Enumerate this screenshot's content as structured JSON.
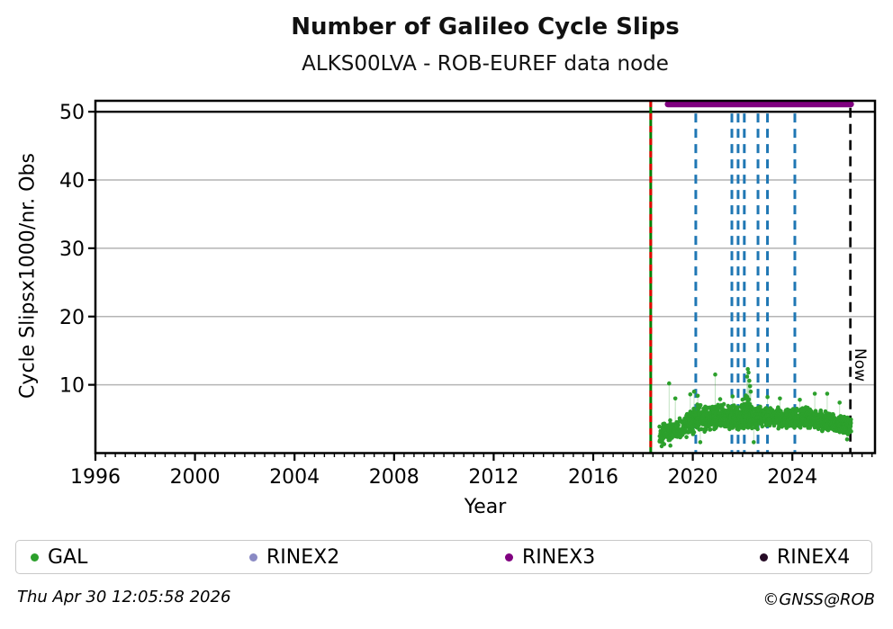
{
  "header": {
    "title": "Number of Galileo Cycle Slips",
    "subtitle": "ALKS00LVA - ROB-EUREF data node"
  },
  "footer": {
    "timestamp": "Thu Apr 30 12:05:58 2026",
    "copyright": "©GNSS@ROB"
  },
  "legend": {
    "items": [
      {
        "label": "GAL",
        "color": "#2ca02c"
      },
      {
        "label": "RINEX2",
        "color": "#8a8ac4"
      },
      {
        "label": "RINEX3",
        "color": "#800080"
      },
      {
        "label": "RINEX4",
        "color": "#260b26"
      }
    ]
  },
  "chart_data": {
    "type": "scatter",
    "title": "Number of Galileo Cycle Slips",
    "subtitle": "ALKS00LVA - ROB-EUREF data node",
    "xlabel": "Year",
    "ylabel": "Cycle Slipsx1000/nr. Obs",
    "xlim": [
      1996,
      2027.32
    ],
    "ylim": [
      0,
      51.6
    ],
    "x_major_ticks": [
      1996,
      2000,
      2004,
      2008,
      2012,
      2016,
      2020,
      2024
    ],
    "x_minor_tick_step": 0.4,
    "y_ticks": [
      10,
      20,
      30,
      40,
      50
    ],
    "grid": {
      "y_values": [
        10,
        20,
        30,
        40
      ],
      "color": "#b4b4b4",
      "y50_line": {
        "value": 50,
        "color": "#000000",
        "width": 2.4
      }
    },
    "now_marker": {
      "x": 2026.33,
      "label": "Now",
      "color": "#000000",
      "style": "dashed"
    },
    "station_start_line": {
      "x": 2018.31,
      "style": "dashed",
      "colors": [
        "#008000",
        "#e10600"
      ]
    },
    "event_lines": {
      "color": "#1f77b4",
      "style": "dashed",
      "x": [
        2020.12,
        2021.57,
        2021.82,
        2022.07,
        2022.62,
        2023.0,
        2024.1
      ]
    },
    "rinex3_availability": {
      "name": "RINEX3",
      "color": "#800080",
      "y": 51.1,
      "x_start": 2019.0,
      "x_end": 2026.35
    },
    "rinex2_availability": {
      "name": "RINEX2",
      "color": "#8a8ac4",
      "points": []
    },
    "rinex4_availability": {
      "name": "RINEX4",
      "color": "#260b26",
      "points": []
    },
    "gal_series": {
      "name": "GAL",
      "color": "#2ca02c",
      "marker_radius": 2.3,
      "x_start": 2018.66,
      "x_end": 2026.36,
      "sample_step_years": 0.004,
      "band_keyframes": [
        [
          2018.66,
          2.6,
          1.4
        ],
        [
          2019.0,
          3.0,
          1.5
        ],
        [
          2019.55,
          3.6,
          1.5
        ],
        [
          2019.9,
          4.8,
          1.9
        ],
        [
          2020.25,
          5.2,
          2.0
        ],
        [
          2020.7,
          5.0,
          1.7
        ],
        [
          2021.2,
          5.4,
          1.7
        ],
        [
          2021.8,
          5.2,
          1.6
        ],
        [
          2022.2,
          6.2,
          2.6
        ],
        [
          2022.45,
          5.0,
          1.6
        ],
        [
          2023.2,
          5.2,
          1.5
        ],
        [
          2023.9,
          5.0,
          1.4
        ],
        [
          2024.6,
          5.1,
          1.5
        ],
        [
          2025.2,
          4.7,
          1.4
        ],
        [
          2025.8,
          4.3,
          1.3
        ],
        [
          2026.36,
          3.9,
          1.2
        ]
      ],
      "density_keyframes": [
        [
          2018.66,
          0.5
        ],
        [
          2019.55,
          0.55
        ],
        [
          2019.65,
          0.95
        ],
        [
          2026.36,
          0.95
        ]
      ],
      "spike_points": [
        [
          2019.05,
          10.2
        ],
        [
          2019.3,
          8.0
        ],
        [
          2019.9,
          8.6
        ],
        [
          2020.05,
          9.0
        ],
        [
          2020.2,
          8.4
        ],
        [
          2020.9,
          11.5
        ],
        [
          2021.1,
          7.9
        ],
        [
          2021.6,
          8.3
        ],
        [
          2022.18,
          11.2
        ],
        [
          2022.21,
          12.3
        ],
        [
          2022.24,
          11.8
        ],
        [
          2022.27,
          10.6
        ],
        [
          2022.3,
          9.8
        ],
        [
          2022.33,
          9.0
        ],
        [
          2023.0,
          8.2
        ],
        [
          2023.5,
          8.0
        ],
        [
          2024.3,
          7.8
        ],
        [
          2024.9,
          8.7
        ],
        [
          2025.4,
          8.7
        ],
        [
          2025.9,
          7.4
        ]
      ],
      "low_points": [
        [
          2018.75,
          1.0
        ],
        [
          2018.85,
          1.3
        ],
        [
          2019.1,
          1.1
        ],
        [
          2020.3,
          1.6
        ],
        [
          2022.45,
          1.6
        ],
        [
          2026.2,
          2.0
        ]
      ]
    }
  }
}
